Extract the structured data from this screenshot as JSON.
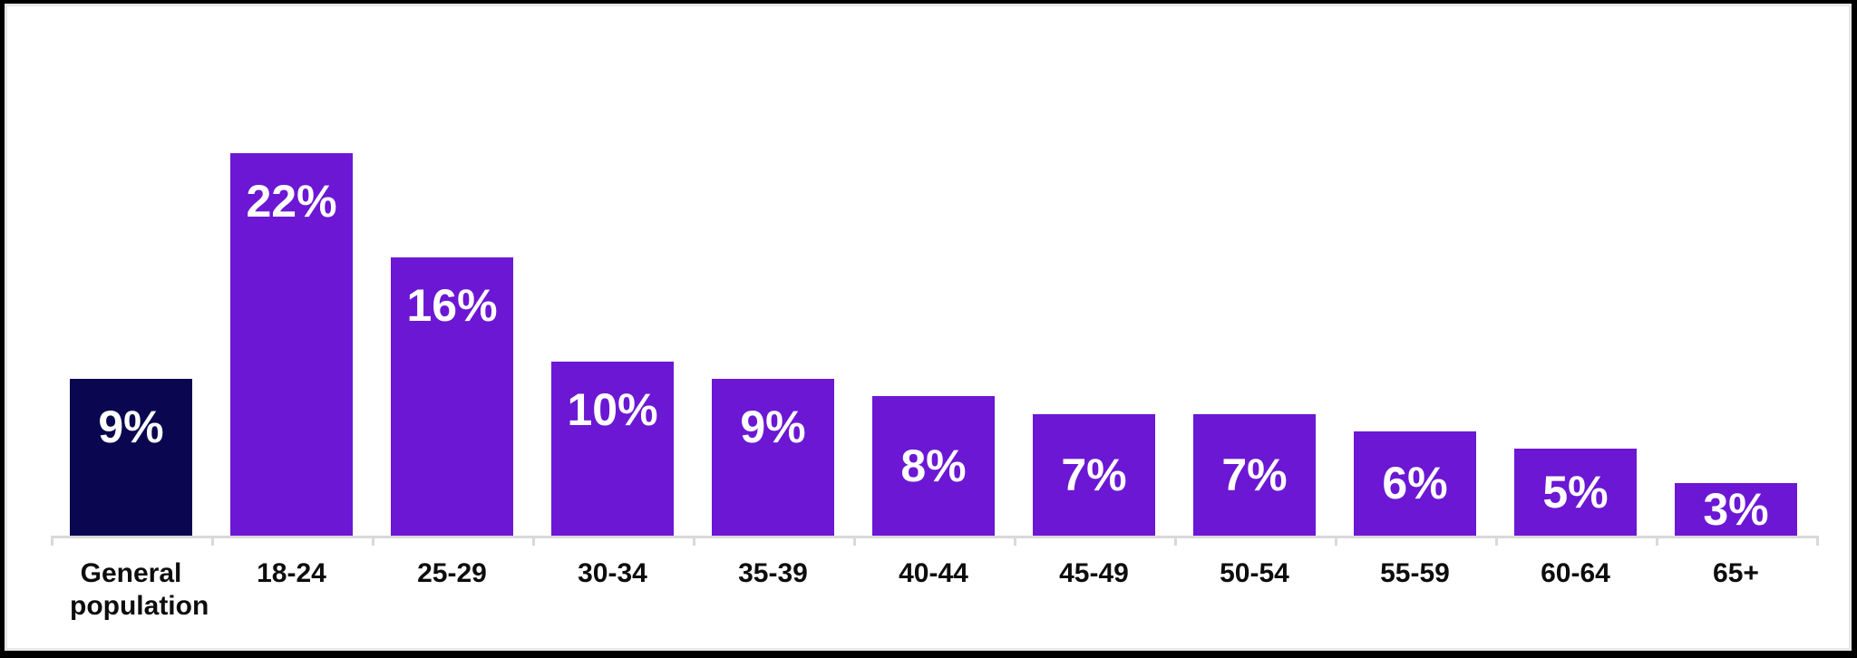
{
  "chart_data": {
    "type": "bar",
    "title": "",
    "xlabel": "",
    "ylabel": "",
    "categories": [
      "General population",
      "18-24",
      "25-29",
      "30-34",
      "35-39",
      "40-44",
      "45-49",
      "50-54",
      "55-59",
      "60-64",
      "65+"
    ],
    "values": [
      9,
      22,
      16,
      10,
      9,
      8,
      7,
      7,
      6,
      5,
      3
    ],
    "value_labels": [
      "9%",
      "22%",
      "16%",
      "10%",
      "9%",
      "8%",
      "7%",
      "7%",
      "6%",
      "5%",
      "3%"
    ],
    "ylim": [
      0,
      22
    ],
    "grid": false,
    "legend": false,
    "unit": "percent",
    "colors": {
      "bar_default": "#6c17d4",
      "bar_highlight": "#0a0750",
      "value_label_text": "#ffffff",
      "category_label_text": "#0d0d0d",
      "axis_line": "#d9d9d9",
      "panel_background": "#ffffff",
      "outer_frame": "#000000"
    },
    "highlight_index": 0
  }
}
